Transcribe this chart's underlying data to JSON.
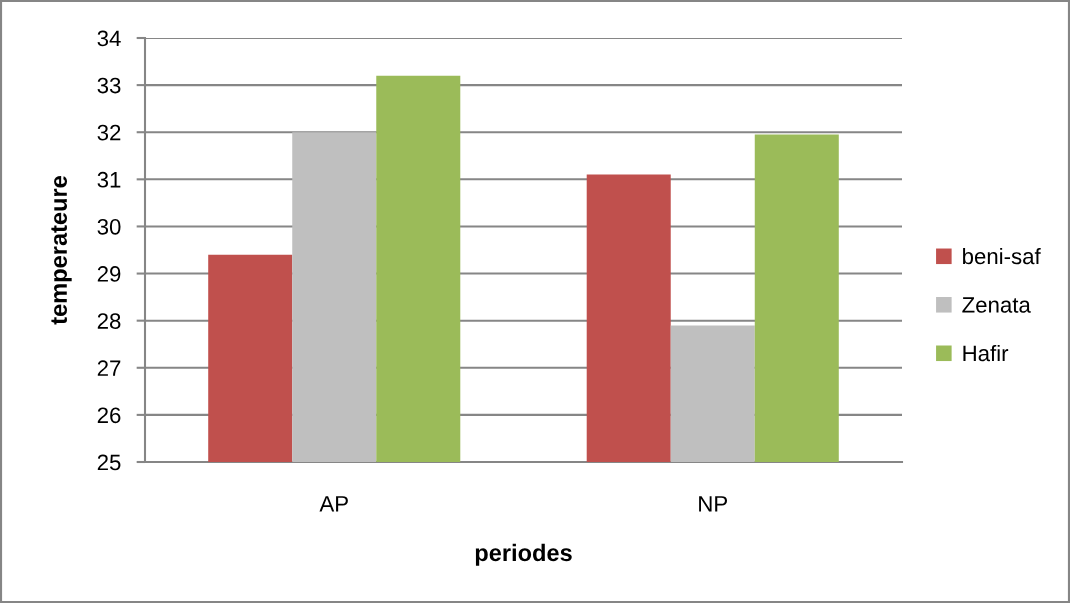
{
  "chart_data": {
    "type": "bar",
    "xlabel": "periodes",
    "ylabel": "temperateure",
    "categories": [
      "AP",
      "NP"
    ],
    "series": [
      {
        "name": "beni-saf",
        "color": "#c0504d",
        "values": [
          29.4,
          31.1
        ]
      },
      {
        "name": "Zenata",
        "color": "#bfbfbf",
        "values": [
          32.0,
          27.9
        ]
      },
      {
        "name": "Hafir",
        "color": "#9bbb59",
        "values": [
          33.2,
          31.95
        ]
      }
    ],
    "ylim": [
      25,
      34
    ],
    "yticks": [
      25,
      26,
      27,
      28,
      29,
      30,
      31,
      32,
      33,
      34
    ],
    "grid": "y",
    "legend": "right"
  }
}
